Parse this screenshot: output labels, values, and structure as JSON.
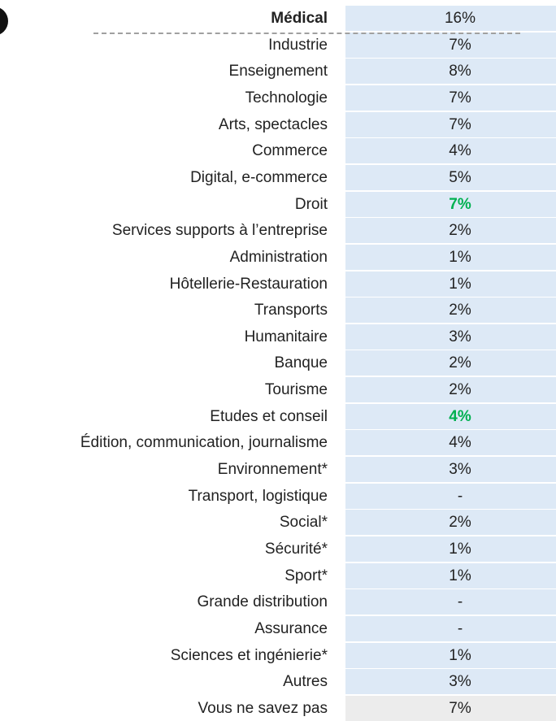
{
  "table": {
    "rows": [
      {
        "label": "Médical",
        "value": "16%",
        "bold": true
      },
      {
        "label": "Industrie",
        "value": "7%"
      },
      {
        "label": "Enseignement",
        "value": "8%"
      },
      {
        "label": "Technologie",
        "value": "7%"
      },
      {
        "label": "Arts, spectacles",
        "value": "7%"
      },
      {
        "label": "Commerce",
        "value": "4%"
      },
      {
        "label": "Digital, e-commerce",
        "value": "5%"
      },
      {
        "label": "Droit",
        "value": "7%",
        "color": "#00b050"
      },
      {
        "label": "Services supports à l’entreprise",
        "value": "2%"
      },
      {
        "label": "Administration",
        "value": "1%"
      },
      {
        "label": "Hôtellerie-Restauration",
        "value": "1%"
      },
      {
        "label": "Transports",
        "value": "2%"
      },
      {
        "label": "Humanitaire",
        "value": "3%"
      },
      {
        "label": "Banque",
        "value": "2%"
      },
      {
        "label": "Tourisme",
        "value": "2%"
      },
      {
        "label": "Etudes et conseil",
        "value": "4%",
        "color": "#00b050"
      },
      {
        "label": "Édition, communication, journalisme",
        "value": "4%"
      },
      {
        "label": "Environnement*",
        "value": "3%"
      },
      {
        "label": "Transport, logistique",
        "value": "-"
      },
      {
        "label": "Social*",
        "value": "2%"
      },
      {
        "label": "Sécurité*",
        "value": "1%"
      },
      {
        "label": "Sport*",
        "value": "1%"
      },
      {
        "label": "Grande distribution",
        "value": "-"
      },
      {
        "label": "Assurance",
        "value": "-"
      },
      {
        "label": "Sciences et ingénierie*",
        "value": "1%"
      },
      {
        "label": "Autres",
        "value": "3%"
      },
      {
        "label": "Vous ne savez pas",
        "value": "7%",
        "background": "#ececec"
      }
    ]
  }
}
